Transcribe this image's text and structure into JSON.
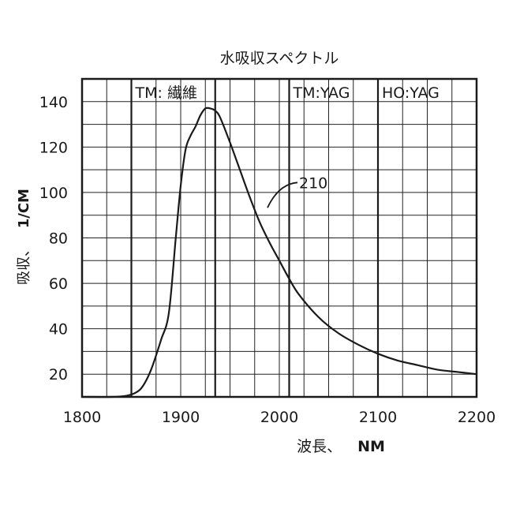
{
  "chart_data": {
    "type": "line",
    "title": "水吸収スペクトル",
    "xlabel_text": "波長、",
    "xlabel_unit": "NM",
    "ylabel_text": "吸収、",
    "ylabel_unit": "1/CM",
    "xlim": [
      1800,
      2200
    ],
    "ylim": [
      10,
      150
    ],
    "x_ticks": [
      1800,
      1900,
      2000,
      2100,
      2200
    ],
    "y_ticks": [
      20,
      40,
      60,
      80,
      100,
      120,
      140
    ],
    "grid": true,
    "series": [
      {
        "x": [
          1800,
          1830,
          1845,
          1855,
          1862,
          1870,
          1880,
          1888,
          1895,
          1900,
          1905,
          1910,
          1915,
          1920,
          1925,
          1930,
          1935,
          1940,
          1950,
          1960,
          1970,
          1980,
          1990,
          2000,
          2010,
          2020,
          2040,
          2060,
          2080,
          2100,
          2120,
          2140,
          2160,
          2180,
          2200
        ],
        "y": [
          10,
          10,
          10.5,
          12,
          15,
          22,
          35,
          47,
          80,
          103,
          119,
          125,
          129,
          134,
          137,
          137,
          136,
          133,
          122,
          110,
          98,
          87,
          78,
          70,
          62,
          55,
          45,
          38,
          33,
          29,
          26,
          24,
          22,
          21,
          20
        ]
      }
    ],
    "regions": [
      {
        "label": "TM: 繊維",
        "x_start": 1850,
        "x_end": 1935
      },
      {
        "label": "TM:YAG",
        "x_start": 2010,
        "x_end": 2100
      },
      {
        "label": "HO:YAG",
        "x_start": 2100,
        "x_end": 2200
      }
    ],
    "annotations": [
      {
        "text": "210",
        "x": 2020,
        "y": 103
      }
    ]
  }
}
